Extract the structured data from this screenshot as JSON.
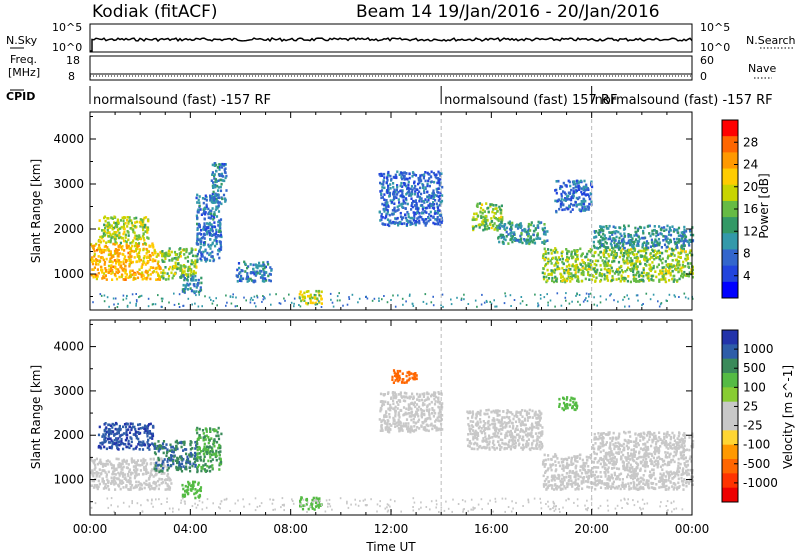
{
  "header": {
    "left_title": "Kodiak (fitACF)",
    "right_title": "Beam 14  19/Jan/2016 - 20/Jan/2016"
  },
  "strip_labels": {
    "nsky": "N.Sky",
    "nsky_top": "10^5",
    "nsky_bottom": "10^0",
    "nsearch": "N.Search",
    "nsearch_top": "10^5",
    "nsearch_bottom": "10^0",
    "freq_line1": "Freq.",
    "freq_line2": "[MHz]",
    "freq_top": "18",
    "freq_bottom": "8",
    "nave": "Nave",
    "nave_top": "60",
    "nave_bottom": "0",
    "cpid": "CPID"
  },
  "cpid_segments": [
    {
      "label": "normalsound (fast) -157 RF",
      "start_hour": 0
    },
    {
      "label": "normalsound (fast) 157 RF",
      "start_hour": 14
    },
    {
      "label": "normalsound (fast) -157 RF",
      "start_hour": 20
    }
  ],
  "chart_data": [
    {
      "type": "heatmap",
      "panel": "power",
      "ylabel": "Slant Range [km]",
      "ylim": [
        200,
        4600
      ],
      "yticks": [
        "1000",
        "2000",
        "3000",
        "4000"
      ],
      "xlim_hours": [
        0,
        24
      ],
      "colorbar_label": "Power [dB]",
      "colorbar_ticks": [
        "28",
        "24",
        "20",
        "16",
        "12",
        "8",
        "4"
      ],
      "colorbar_colors": [
        "#ff0000",
        "#ff6600",
        "#ff9900",
        "#ffcc00",
        "#c8d400",
        "#66bb44",
        "#339966",
        "#3399aa",
        "#3366cc",
        "#2244dd",
        "#0000ff"
      ],
      "regions": [
        {
          "t0": 0.0,
          "t1": 2.8,
          "r0": 900,
          "r1": 1700,
          "v": 22
        },
        {
          "t0": 0.3,
          "t1": 2.3,
          "r0": 1700,
          "r1": 2300,
          "v": 17
        },
        {
          "t0": 2.8,
          "t1": 4.2,
          "r0": 900,
          "r1": 1600,
          "v": 16
        },
        {
          "t0": 3.6,
          "t1": 4.4,
          "r0": 600,
          "r1": 1000,
          "v": 9
        },
        {
          "t0": 4.2,
          "t1": 5.2,
          "r0": 1300,
          "r1": 2800,
          "v": 7
        },
        {
          "t0": 4.8,
          "t1": 5.4,
          "r0": 2600,
          "r1": 3500,
          "v": 8
        },
        {
          "t0": 5.8,
          "t1": 7.2,
          "r0": 850,
          "r1": 1300,
          "v": 8
        },
        {
          "t0": 8.3,
          "t1": 9.2,
          "r0": 350,
          "r1": 650,
          "v": 18
        },
        {
          "t0": 11.5,
          "t1": 14.0,
          "r0": 2100,
          "r1": 3300,
          "v": 6
        },
        {
          "t0": 15.2,
          "t1": 16.4,
          "r0": 2000,
          "r1": 2600,
          "v": 16
        },
        {
          "t0": 16.2,
          "t1": 18.2,
          "r0": 1700,
          "r1": 2200,
          "v": 10
        },
        {
          "t0": 18.0,
          "t1": 24.0,
          "r0": 850,
          "r1": 1600,
          "v": 16
        },
        {
          "t0": 20.0,
          "t1": 24.0,
          "r0": 1600,
          "r1": 2100,
          "v": 9
        },
        {
          "t0": 18.5,
          "t1": 20.0,
          "r0": 2400,
          "r1": 3100,
          "v": 6
        }
      ]
    },
    {
      "type": "heatmap",
      "panel": "velocity",
      "ylabel": "Slant Range [km]",
      "ylim": [
        200,
        4600
      ],
      "yticks": [
        "1000",
        "2000",
        "3000",
        "4000"
      ],
      "xlim_hours": [
        0,
        24
      ],
      "xlabel": "Time UT",
      "xticks": [
        "00:00",
        "04:00",
        "08:00",
        "12:00",
        "16:00",
        "20:00",
        "00:00"
      ],
      "colorbar_label": "Velocity [m s^-1]",
      "colorbar_ticks": [
        "1000",
        "500",
        "100",
        "25",
        "-25",
        "-100",
        "-500",
        "-1000"
      ],
      "colorbar_colors": [
        "#2233aa",
        "#2e5da8",
        "#3a8a5a",
        "#55bb44",
        "#88cc33",
        "#c8c8c8",
        "#c8c8c8",
        "#ffd633",
        "#ff9900",
        "#ff6600",
        "#ff3300",
        "#ee0000"
      ],
      "regions": [
        {
          "t0": 0.0,
          "t1": 3.2,
          "r0": 800,
          "r1": 1500,
          "v": 0
        },
        {
          "t0": 0.3,
          "t1": 2.5,
          "r0": 1700,
          "r1": 2300,
          "v": 900
        },
        {
          "t0": 2.5,
          "t1": 4.2,
          "r0": 1200,
          "r1": 1900,
          "v": 500
        },
        {
          "t0": 3.6,
          "t1": 4.4,
          "r0": 600,
          "r1": 1000,
          "v": 150
        },
        {
          "t0": 4.2,
          "t1": 5.2,
          "r0": 1200,
          "r1": 2200,
          "v": 300
        },
        {
          "t0": 8.3,
          "t1": 9.2,
          "r0": 350,
          "r1": 650,
          "v": 150
        },
        {
          "t0": 11.5,
          "t1": 14.0,
          "r0": 2100,
          "r1": 3000,
          "v": 0
        },
        {
          "t0": 15.0,
          "t1": 18.0,
          "r0": 1700,
          "r1": 2600,
          "v": 0
        },
        {
          "t0": 18.0,
          "t1": 24.0,
          "r0": 800,
          "r1": 1600,
          "v": 0
        },
        {
          "t0": 20.0,
          "t1": 24.0,
          "r0": 1600,
          "r1": 2100,
          "v": 0
        },
        {
          "t0": 18.6,
          "t1": 19.4,
          "r0": 2600,
          "r1": 2900,
          "v": 150
        },
        {
          "t0": 12.0,
          "t1": 13.0,
          "r0": 3200,
          "r1": 3500,
          "v": -200
        }
      ]
    }
  ]
}
